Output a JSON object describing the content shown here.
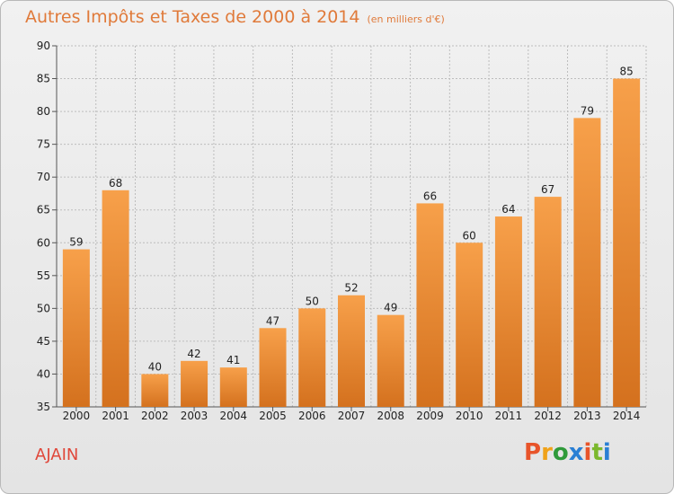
{
  "header": {
    "title": "Autres Impôts et Taxes de 2000 à 2014",
    "unit": "(en milliers d'€)"
  },
  "footer": {
    "commune": "AJAIN",
    "logo": "Proxiti",
    "logo_colors": [
      "#e8542a",
      "#f0a21a",
      "#2f9a3a",
      "#2a7fd4",
      "#e8542a",
      "#7bb82d",
      "#2a7fd4"
    ]
  },
  "chart_data": {
    "type": "bar",
    "title": "Autres Impôts et Taxes de 2000 à 2014",
    "subtitle": "(en milliers d'€)",
    "categories": [
      "2000",
      "2001",
      "2002",
      "2003",
      "2004",
      "2005",
      "2006",
      "2007",
      "2008",
      "2009",
      "2010",
      "2011",
      "2012",
      "2013",
      "2014"
    ],
    "values": [
      59,
      68,
      40,
      42,
      41,
      47,
      50,
      52,
      49,
      66,
      60,
      64,
      67,
      79,
      85
    ],
    "ylim": [
      35,
      90
    ],
    "yticks": [
      35,
      40,
      45,
      50,
      55,
      60,
      65,
      70,
      75,
      80,
      85,
      90
    ],
    "grid": true,
    "bar_color_top": "#f7a04a",
    "bar_color_bottom": "#d4711e"
  }
}
